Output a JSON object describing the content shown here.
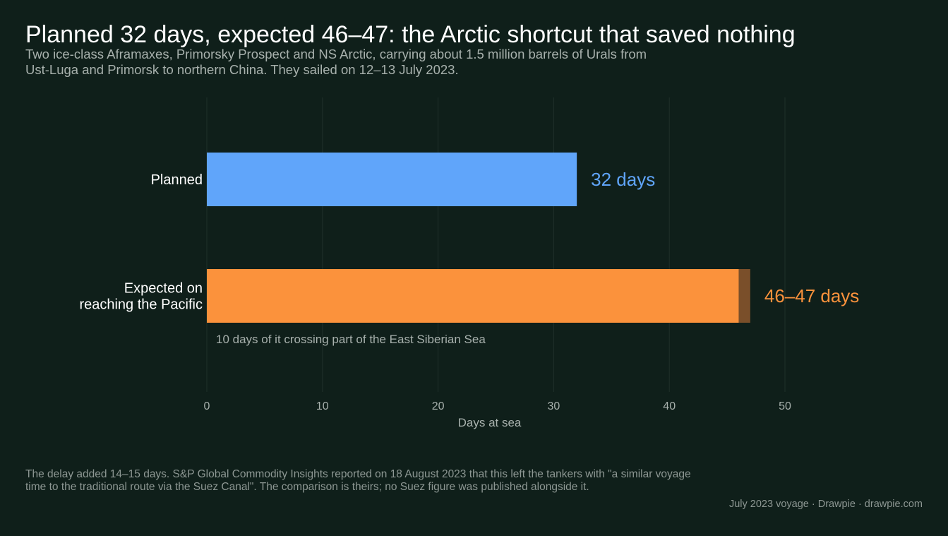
{
  "title": "Planned 32 days, expected 46–47: the Arctic shortcut that saved nothing",
  "subtitle_lines": [
    "Two ice-class Aframaxes, Primorsky Prospect and NS Arctic, carrying about 1.5 million barrels of Urals from",
    "Ust-Luga and Primorsk to northern China. They sailed on 12–13 July 2023."
  ],
  "footnote_lines": [
    "The delay added 14–15 days. S&P Global Commodity Insights reported on 18 August 2023 that this left the tankers with \"a similar voyage",
    "time to the traditional route via the Suez Canal\". The comparison is theirs; no Suez figure was published alongside it."
  ],
  "credit": "July 2023 voyage  ·  Drawpie · drawpie.com",
  "colors": {
    "background": "#0f1f1a",
    "grid": "#1f302a",
    "planned": "#60a5fa",
    "expected": "#fb923c",
    "expected_range": "#7a4f2a",
    "axis_text": "#a8b1ad",
    "label_text": "#ffffff"
  },
  "chart_data": {
    "type": "bar",
    "orientation": "horizontal",
    "xlabel": "Days at sea",
    "xlim": [
      0,
      50
    ],
    "xticks": [
      0,
      10,
      20,
      30,
      40,
      50
    ],
    "grid": true,
    "bars": [
      {
        "label_lines": [
          "Planned"
        ],
        "value": 32,
        "value_label": "32 days",
        "color_key": "planned"
      },
      {
        "label_lines": [
          "Expected on",
          "reaching the Pacific"
        ],
        "value": 46,
        "range_end": 47,
        "value_label": "46–47 days",
        "color_key": "expected",
        "range_color_key": "expected_range",
        "annotation": "10 days of it crossing part of the East Siberian Sea"
      }
    ]
  }
}
